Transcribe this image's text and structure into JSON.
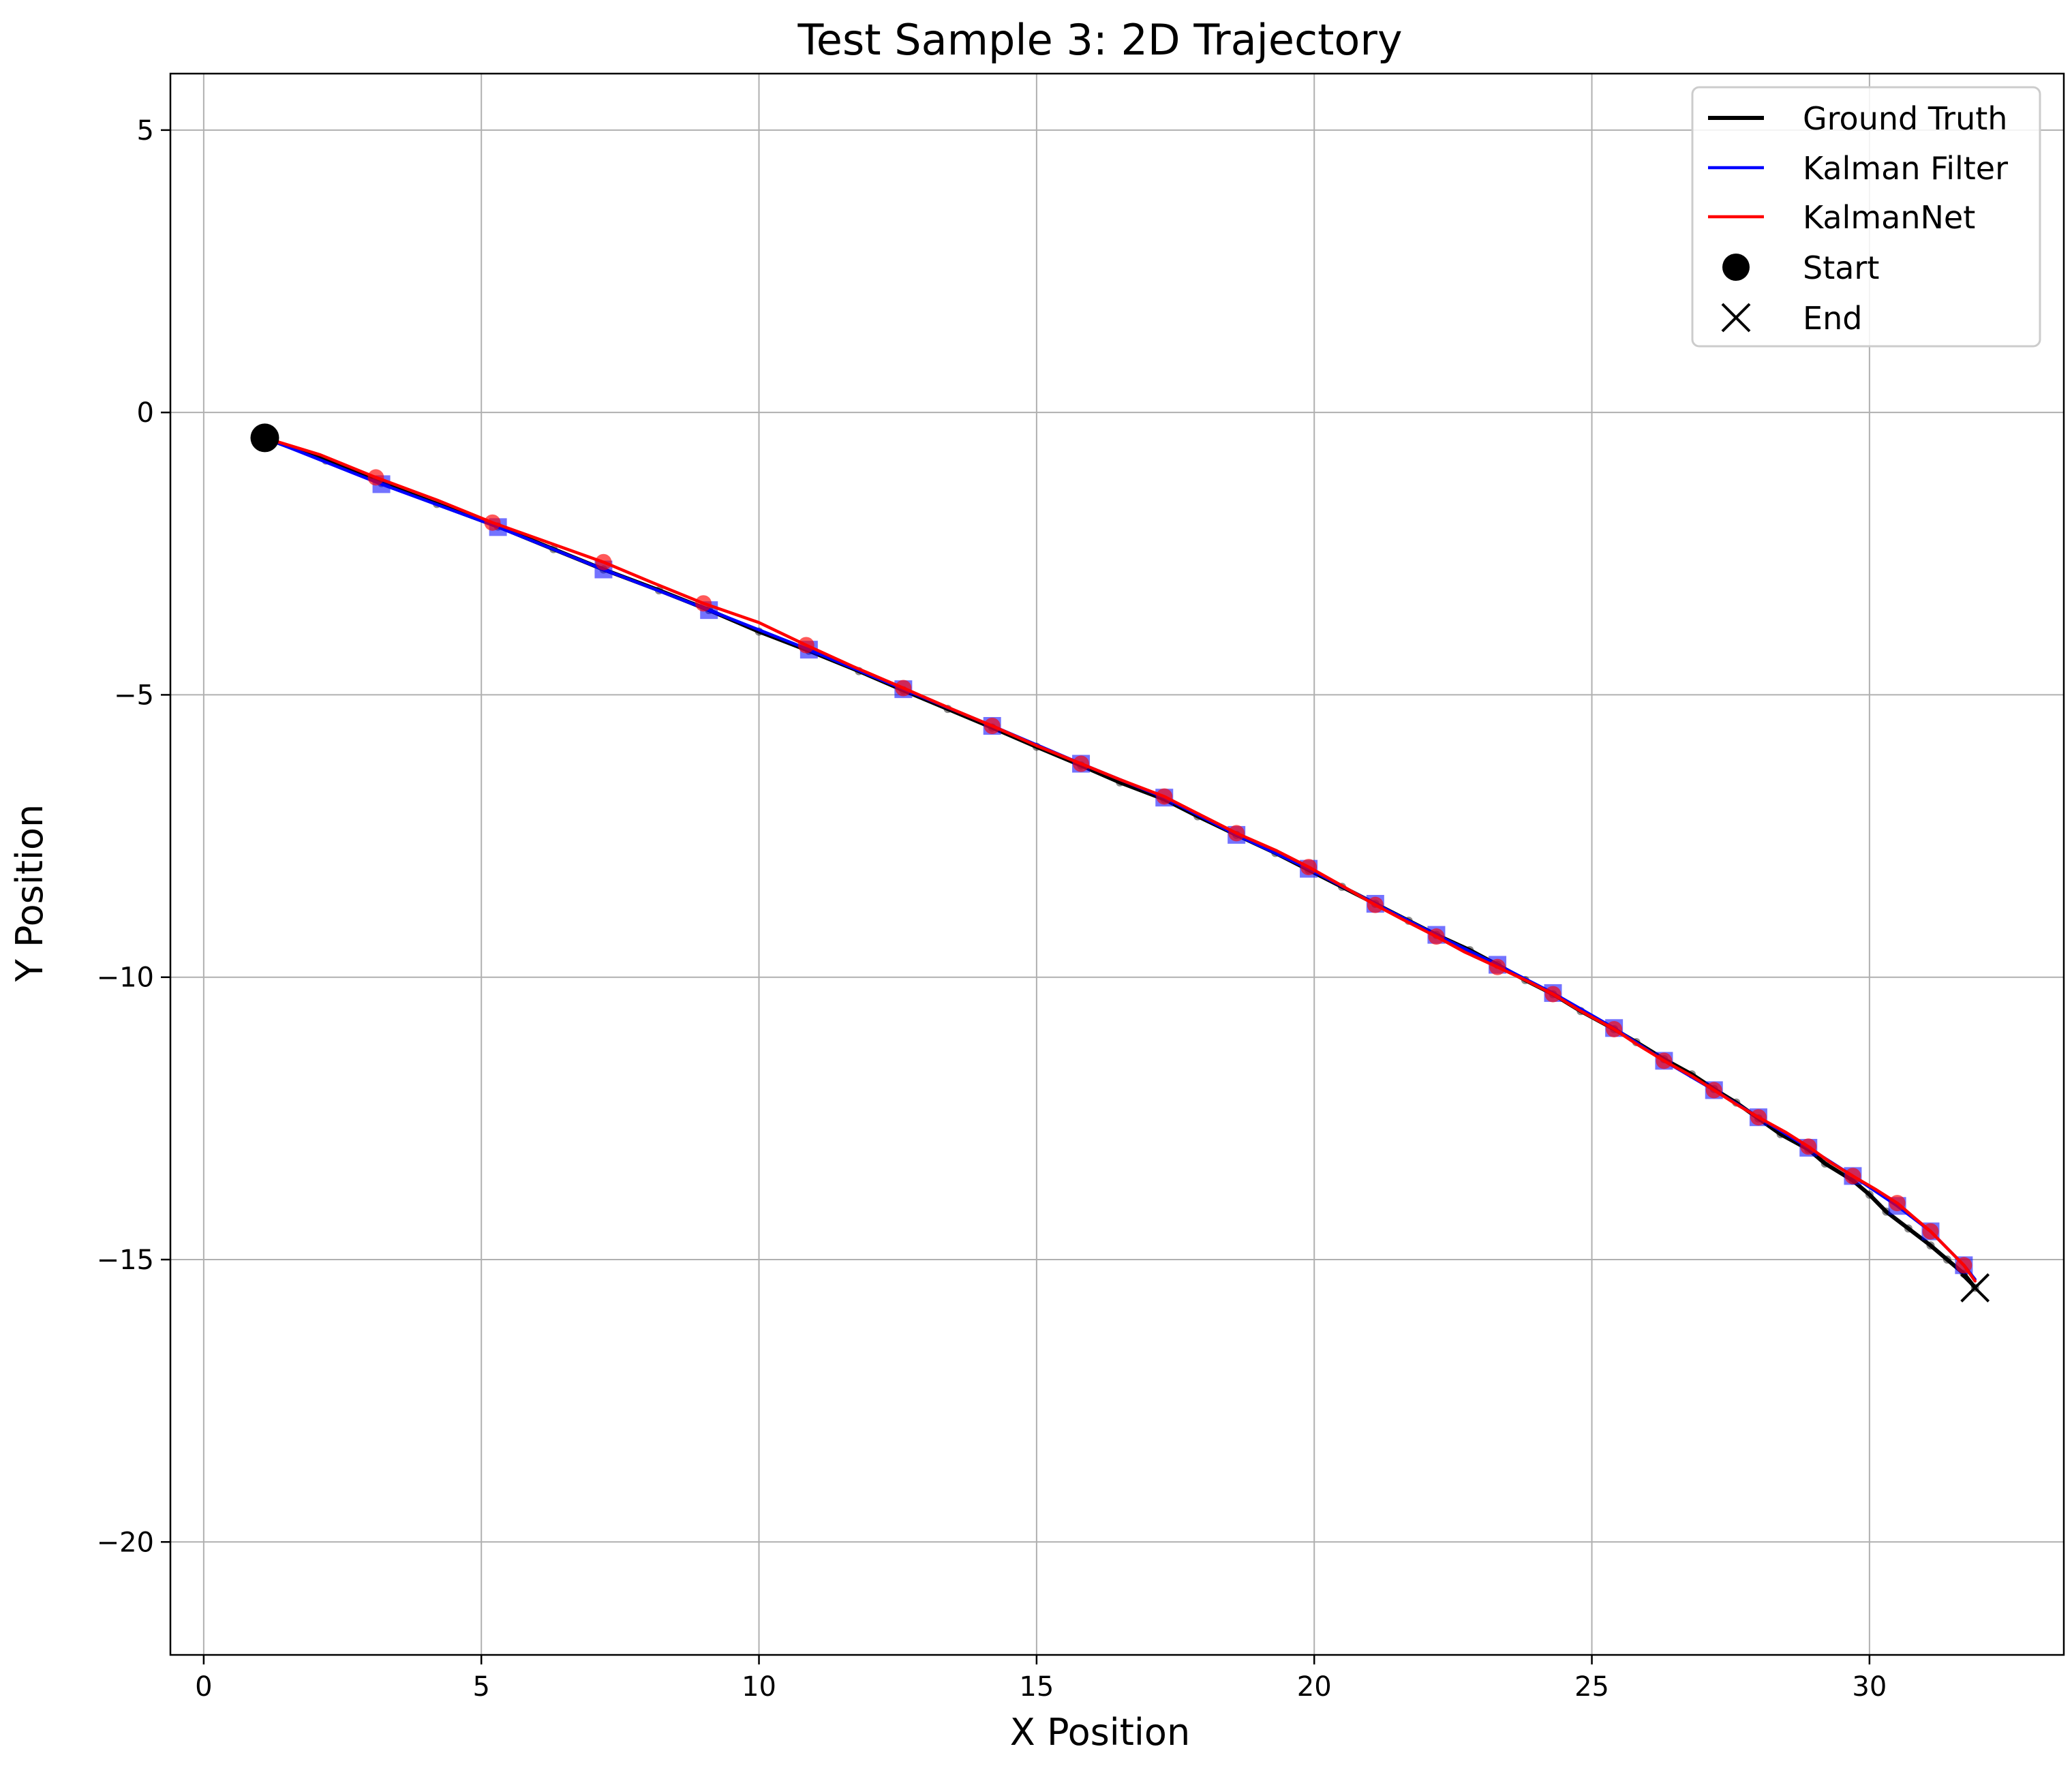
{
  "chart_data": {
    "type": "line",
    "title": "Test Sample 3: 2D Trajectory",
    "xlabel": "X Position",
    "ylabel": "Y Position",
    "xlim": [
      -0.6,
      33.5
    ],
    "ylim": [
      -22.0,
      6.0
    ],
    "x_ticks": [
      0,
      5,
      10,
      15,
      20,
      25,
      30
    ],
    "y_ticks": [
      5,
      0,
      -5,
      -10,
      -15,
      -20
    ],
    "y_tick_labels": [
      "5",
      "0",
      "−5",
      "−10",
      "−15",
      "−20"
    ],
    "grid": true,
    "legend_position": "top-right",
    "series": [
      {
        "name": "Ground Truth",
        "color": "#000000",
        "marker": "dot",
        "points": [
          [
            1.1,
            -0.45
          ],
          [
            2.2,
            -0.85
          ],
          [
            3.2,
            -1.25
          ],
          [
            4.2,
            -1.62
          ],
          [
            5.3,
            -2.02
          ],
          [
            6.3,
            -2.42
          ],
          [
            7.2,
            -2.78
          ],
          [
            8.2,
            -3.15
          ],
          [
            9.1,
            -3.5
          ],
          [
            10.0,
            -3.88
          ],
          [
            10.9,
            -4.22
          ],
          [
            11.8,
            -4.58
          ],
          [
            12.6,
            -4.92
          ],
          [
            13.4,
            -5.25
          ],
          [
            14.2,
            -5.58
          ],
          [
            15.0,
            -5.92
          ],
          [
            15.8,
            -6.25
          ],
          [
            16.5,
            -6.55
          ],
          [
            17.3,
            -6.85
          ],
          [
            17.9,
            -7.15
          ],
          [
            18.6,
            -7.48
          ],
          [
            19.3,
            -7.8
          ],
          [
            19.9,
            -8.1
          ],
          [
            20.5,
            -8.4
          ],
          [
            21.1,
            -8.7
          ],
          [
            21.7,
            -9.0
          ],
          [
            22.2,
            -9.25
          ],
          [
            22.8,
            -9.52
          ],
          [
            23.3,
            -9.78
          ],
          [
            23.8,
            -10.05
          ],
          [
            24.3,
            -10.3
          ],
          [
            24.8,
            -10.6
          ],
          [
            25.4,
            -10.92
          ],
          [
            25.8,
            -11.15
          ],
          [
            26.3,
            -11.45
          ],
          [
            26.8,
            -11.72
          ],
          [
            27.2,
            -11.98
          ],
          [
            27.6,
            -12.22
          ],
          [
            28.0,
            -12.5
          ],
          [
            28.4,
            -12.78
          ],
          [
            28.9,
            -13.05
          ],
          [
            29.2,
            -13.3
          ],
          [
            29.7,
            -13.6
          ],
          [
            30.0,
            -13.85
          ],
          [
            30.3,
            -14.15
          ],
          [
            30.7,
            -14.45
          ],
          [
            31.1,
            -14.75
          ],
          [
            31.4,
            -15.0
          ],
          [
            31.7,
            -15.25
          ],
          [
            31.9,
            -15.5
          ]
        ]
      },
      {
        "name": "Kalman Filter",
        "color": "#0000ff",
        "marker": "square",
        "points": [
          [
            1.1,
            -0.45
          ],
          [
            3.2,
            -1.27
          ],
          [
            5.3,
            -2.03
          ],
          [
            7.2,
            -2.78
          ],
          [
            9.1,
            -3.5
          ],
          [
            10.9,
            -4.2
          ],
          [
            12.6,
            -4.9
          ],
          [
            14.2,
            -5.55
          ],
          [
            15.8,
            -6.22
          ],
          [
            17.3,
            -6.82
          ],
          [
            18.6,
            -7.48
          ],
          [
            19.9,
            -8.08
          ],
          [
            21.1,
            -8.7
          ],
          [
            22.2,
            -9.25
          ],
          [
            23.3,
            -9.78
          ],
          [
            24.3,
            -10.28
          ],
          [
            25.4,
            -10.9
          ],
          [
            26.3,
            -11.48
          ],
          [
            27.2,
            -12.0
          ],
          [
            28.0,
            -12.48
          ],
          [
            28.9,
            -13.02
          ],
          [
            29.7,
            -13.52
          ],
          [
            30.5,
            -14.05
          ],
          [
            31.1,
            -14.5
          ],
          [
            31.7,
            -15.1
          ],
          [
            31.9,
            -15.35
          ]
        ]
      },
      {
        "name": "KalmanNet",
        "color": "#ff0000",
        "marker": "circle",
        "points": [
          [
            1.1,
            -0.45
          ],
          [
            2.1,
            -0.75
          ],
          [
            3.1,
            -1.15
          ],
          [
            4.2,
            -1.55
          ],
          [
            5.2,
            -1.95
          ],
          [
            6.2,
            -2.3
          ],
          [
            7.2,
            -2.65
          ],
          [
            8.1,
            -3.02
          ],
          [
            9.0,
            -3.38
          ],
          [
            10.0,
            -3.72
          ],
          [
            10.85,
            -4.12
          ],
          [
            11.7,
            -4.5
          ],
          [
            12.6,
            -4.88
          ],
          [
            13.4,
            -5.22
          ],
          [
            14.2,
            -5.55
          ],
          [
            15.0,
            -5.9
          ],
          [
            15.8,
            -6.22
          ],
          [
            16.5,
            -6.5
          ],
          [
            17.3,
            -6.8
          ],
          [
            18.0,
            -7.15
          ],
          [
            18.6,
            -7.45
          ],
          [
            19.3,
            -7.75
          ],
          [
            19.9,
            -8.05
          ],
          [
            20.5,
            -8.38
          ],
          [
            21.1,
            -8.72
          ],
          [
            21.6,
            -8.98
          ],
          [
            22.2,
            -9.28
          ],
          [
            22.7,
            -9.55
          ],
          [
            23.3,
            -9.82
          ],
          [
            23.8,
            -10.05
          ],
          [
            24.3,
            -10.3
          ],
          [
            24.8,
            -10.6
          ],
          [
            25.4,
            -10.92
          ],
          [
            25.8,
            -11.18
          ],
          [
            26.3,
            -11.48
          ],
          [
            26.8,
            -11.75
          ],
          [
            27.2,
            -12.0
          ],
          [
            27.6,
            -12.25
          ],
          [
            28.0,
            -12.48
          ],
          [
            28.5,
            -12.75
          ],
          [
            28.9,
            -13.0
          ],
          [
            29.3,
            -13.28
          ],
          [
            29.7,
            -13.52
          ],
          [
            30.1,
            -13.75
          ],
          [
            30.5,
            -14.0
          ],
          [
            30.8,
            -14.25
          ],
          [
            31.1,
            -14.5
          ],
          [
            31.4,
            -14.8
          ],
          [
            31.7,
            -15.1
          ],
          [
            31.9,
            -15.38
          ]
        ]
      }
    ],
    "start": {
      "name": "Start",
      "x": 1.1,
      "y": -0.45,
      "color": "#000000"
    },
    "end": {
      "name": "End",
      "x": 31.9,
      "y": -15.5,
      "color": "#000000"
    }
  }
}
